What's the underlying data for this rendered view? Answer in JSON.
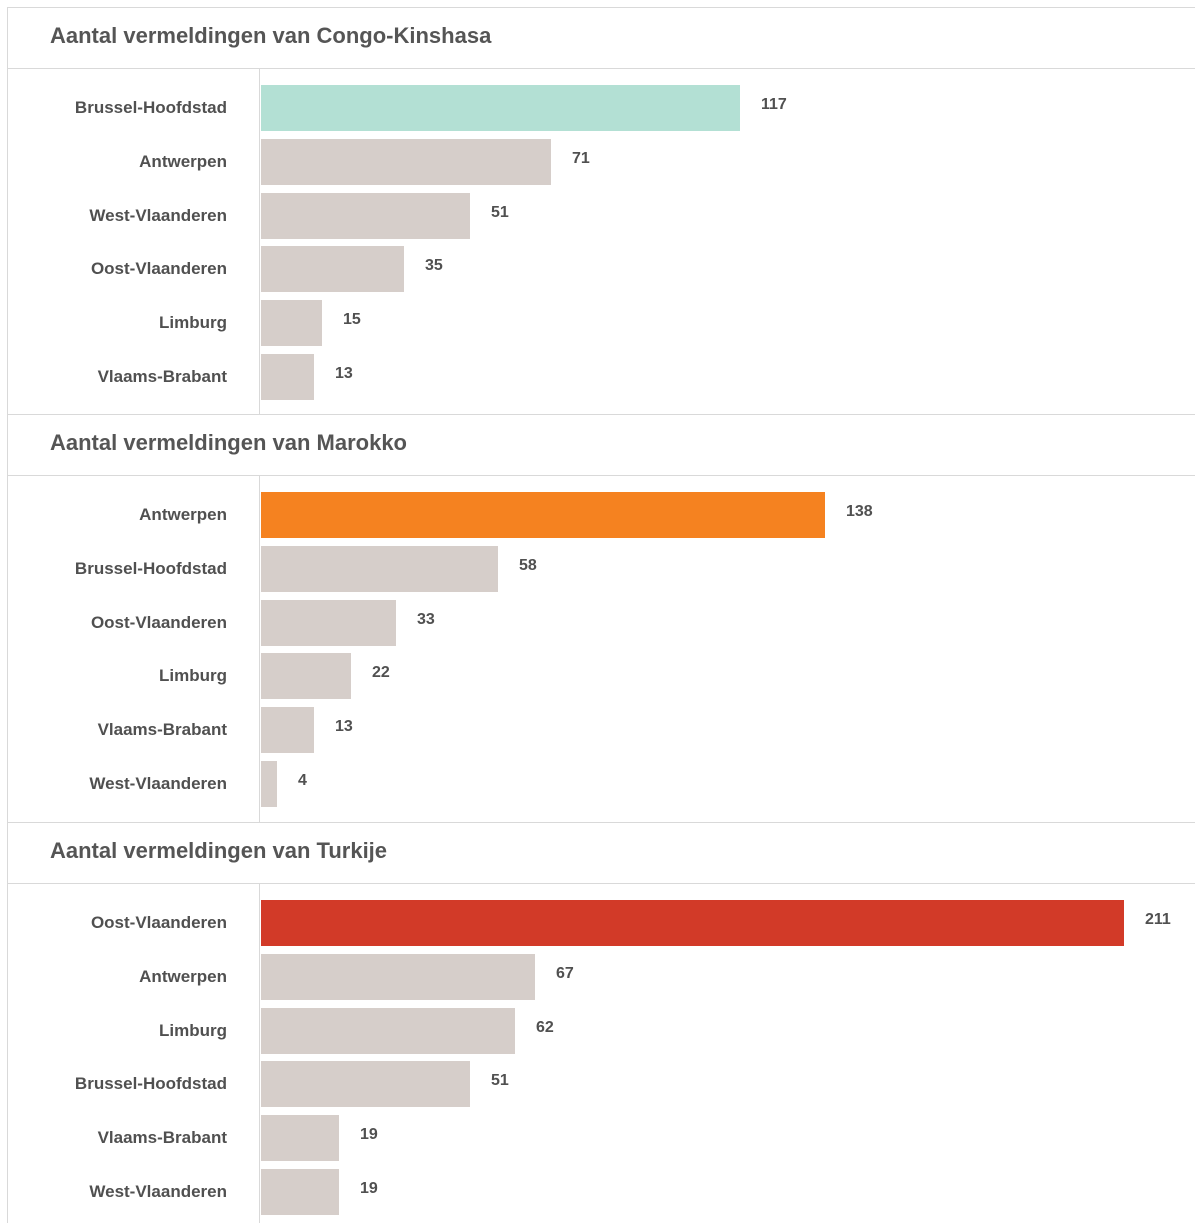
{
  "colors": {
    "default_bar": "#d6ceca",
    "title_text": "#555555",
    "label_text": "#505050",
    "divider": "#d9d9d9"
  },
  "chart_data": [
    {
      "type": "bar",
      "orientation": "horizontal",
      "title": "Aantal vermeldingen van Congo-Kinshasa",
      "categories": [
        "Brussel-Hoofdstad",
        "Antwerpen",
        "West-Vlaanderen",
        "Oost-Vlaanderen",
        "Limburg",
        "Vlaams-Brabant"
      ],
      "values": [
        117,
        71,
        51,
        35,
        15,
        13
      ],
      "highlight_color": "#b3e0d4",
      "data_labels": true
    },
    {
      "type": "bar",
      "orientation": "horizontal",
      "title": "Aantal vermeldingen van Marokko",
      "categories": [
        "Antwerpen",
        "Brussel-Hoofdstad",
        "Oost-Vlaanderen",
        "Limburg",
        "Vlaams-Brabant",
        "West-Vlaanderen"
      ],
      "values": [
        138,
        58,
        33,
        22,
        13,
        4
      ],
      "highlight_color": "#f58220",
      "data_labels": true
    },
    {
      "type": "bar",
      "orientation": "horizontal",
      "title": "Aantal vermeldingen van Turkije",
      "categories": [
        "Oost-Vlaanderen",
        "Antwerpen",
        "Limburg",
        "Brussel-Hoofdstad",
        "Vlaams-Brabant",
        "West-Vlaanderen"
      ],
      "values": [
        211,
        67,
        62,
        51,
        19,
        19
      ],
      "highlight_color": "#d23a28",
      "data_labels": true
    }
  ]
}
